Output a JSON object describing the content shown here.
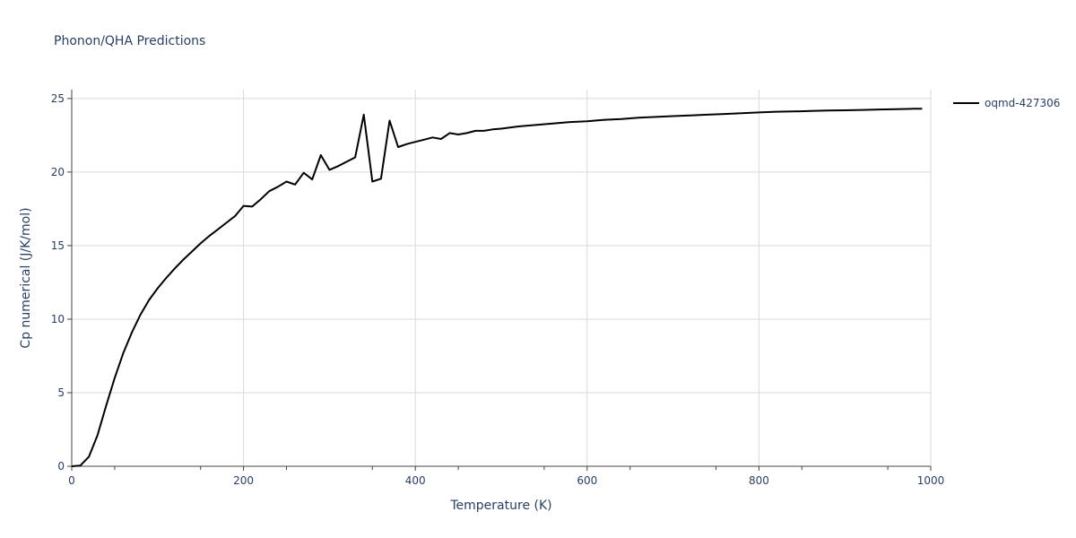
{
  "chart_data": {
    "type": "line",
    "title": "Phonon/QHA Predictions",
    "xlabel": "Temperature (K)",
    "ylabel": "Cp numerical (J/K/mol)",
    "xlim": [
      0,
      1000
    ],
    "ylim": [
      0,
      25.6
    ],
    "x_ticks": [
      0,
      200,
      400,
      600,
      800,
      1000
    ],
    "y_ticks": [
      0,
      5,
      10,
      15,
      20,
      25
    ],
    "grid": true,
    "legend_position": "top-right",
    "series": [
      {
        "name": "oqmd-427306",
        "color": "#000000",
        "x": [
          0,
          10,
          20,
          30,
          40,
          50,
          60,
          70,
          80,
          90,
          100,
          110,
          120,
          130,
          140,
          150,
          160,
          170,
          180,
          190,
          200,
          210,
          220,
          230,
          240,
          250,
          260,
          270,
          280,
          290,
          300,
          310,
          320,
          330,
          340,
          350,
          360,
          370,
          380,
          390,
          400,
          410,
          420,
          430,
          440,
          450,
          460,
          470,
          480,
          490,
          500,
          520,
          540,
          560,
          580,
          600,
          620,
          640,
          660,
          680,
          700,
          720,
          740,
          760,
          780,
          800,
          820,
          840,
          860,
          880,
          900,
          920,
          940,
          960,
          980,
          990
        ],
        "y": [
          0,
          0.05,
          0.65,
          2.1,
          4.1,
          6.0,
          7.7,
          9.1,
          10.3,
          11.3,
          12.1,
          12.8,
          13.45,
          14.05,
          14.6,
          15.15,
          15.65,
          16.1,
          16.55,
          17.0,
          17.7,
          17.65,
          18.15,
          18.7,
          19.0,
          19.35,
          19.15,
          19.95,
          19.5,
          21.15,
          20.15,
          20.4,
          20.7,
          21.0,
          23.9,
          19.35,
          19.55,
          23.5,
          21.7,
          21.9,
          22.05,
          22.2,
          22.35,
          22.25,
          22.65,
          22.55,
          22.65,
          22.8,
          22.8,
          22.9,
          22.95,
          23.1,
          23.2,
          23.3,
          23.4,
          23.45,
          23.55,
          23.6,
          23.7,
          23.75,
          23.8,
          23.85,
          23.9,
          23.95,
          24.0,
          24.05,
          24.1,
          24.12,
          24.15,
          24.18,
          24.2,
          24.22,
          24.25,
          24.27,
          24.3,
          24.3
        ]
      }
    ]
  }
}
